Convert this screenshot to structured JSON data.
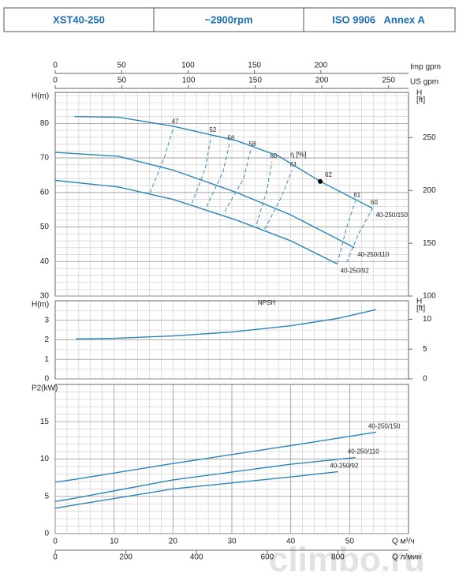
{
  "header": {
    "model": "XST40-250",
    "speed": "~2900rpm",
    "standard": "ISO 9906   Annex A"
  },
  "watermark": "climbo.ru",
  "chart_data": [
    {
      "type": "line",
      "ylabel": "H(m)",
      "y2label": [
        "H",
        "[ft]"
      ],
      "xlim": [
        0,
        60
      ],
      "ylim": [
        30,
        89
      ],
      "yticks": [
        30,
        40,
        50,
        60,
        70,
        80
      ],
      "y2lim": [
        100,
        293
      ],
      "y2ticks": [
        100,
        150,
        200,
        250
      ],
      "grid": true,
      "top_axes": [
        {
          "label": "Imp gpm",
          "xlim": [
            0,
            266
          ],
          "xticks": [
            0,
            50,
            100,
            150,
            200
          ]
        },
        {
          "label": "US gpm",
          "xlim": [
            0,
            265
          ],
          "xticks": [
            0,
            50,
            100,
            150,
            200,
            250
          ]
        }
      ],
      "series": [
        {
          "name": "40-250/150",
          "color": "#2a86b5",
          "x": [
            3.3,
            10.7,
            20,
            30.8,
            38,
            45,
            53.9
          ],
          "values": [
            82,
            81.8,
            79.2,
            75,
            70.5,
            63.2,
            55.4
          ]
        },
        {
          "name": "40-250/110",
          "color": "#2a86b5",
          "x": [
            0,
            10.7,
            20,
            30.8,
            40,
            50.8
          ],
          "values": [
            71.6,
            70.5,
            66.5,
            60,
            53.5,
            44
          ]
        },
        {
          "name": "40-250/92",
          "color": "#2a86b5",
          "x": [
            0,
            10.7,
            20,
            30.8,
            40,
            47.9
          ],
          "values": [
            63.5,
            61.6,
            58,
            52,
            46,
            39.3
          ]
        }
      ],
      "efficiency_label": "η [%]",
      "efficiency_lines": [
        {
          "label": "47",
          "x": [
            16.1,
            18.5,
            20.1
          ],
          "y": [
            59.9,
            70,
            78.9
          ]
        },
        {
          "label": "52",
          "x": [
            23.2,
            25.5,
            26.5
          ],
          "y": [
            56.8,
            67,
            76.4
          ]
        },
        {
          "label": "56",
          "x": [
            25.7,
            28.5,
            29.6
          ],
          "y": [
            55.9,
            66,
            74.1
          ]
        },
        {
          "label": "58",
          "x": [
            28.8,
            32,
            33.2
          ],
          "y": [
            54.5,
            64,
            72.3
          ]
        },
        {
          "label": "60",
          "x": [
            34.2,
            36,
            36.8
          ],
          "y": [
            50.8,
            61,
            68.9
          ]
        },
        {
          "label": "61",
          "x": [
            35.6,
            38.5,
            40.2
          ],
          "y": [
            49.4,
            59,
            66.4
          ]
        },
        {
          "label": "61",
          "x": [
            47.9,
            49.5,
            51
          ],
          "y": [
            39.3,
            50,
            57.6
          ]
        },
        {
          "label": "60",
          "x": [
            49.5,
            51.5,
            53.9
          ],
          "y": [
            39.7,
            48,
            55.4
          ]
        }
      ],
      "best_point": {
        "label": "62",
        "x": 45,
        "y": 63.2
      }
    },
    {
      "type": "line",
      "ylabel": "H(m)",
      "y2label": [
        "H",
        "[ft]"
      ],
      "xlim": [
        0,
        60
      ],
      "ylim": [
        0,
        4
      ],
      "yticks": [
        0,
        1,
        2,
        3
      ],
      "y2lim": [
        0,
        13.1
      ],
      "y2ticks": [
        0,
        5,
        10
      ],
      "grid": true,
      "series": [
        {
          "name": "NPSH",
          "color": "#2a86b5",
          "x": [
            3.5,
            10,
            20,
            30,
            40,
            48,
            54.5
          ],
          "values": [
            2.05,
            2.08,
            2.2,
            2.4,
            2.72,
            3.1,
            3.55
          ]
        }
      ]
    },
    {
      "type": "line",
      "ylabel": "P2(kW)",
      "xlabel": "Q м³/ч",
      "xlim": [
        0,
        60
      ],
      "xticks": [
        0,
        10,
        20,
        30,
        40,
        50
      ],
      "ylim": [
        0,
        20
      ],
      "yticks": [
        0,
        5,
        10,
        15
      ],
      "grid": true,
      "bottom_axes": [
        {
          "label": "Q л/мин",
          "xlim": [
            0,
            1000
          ],
          "xticks": [
            0,
            200,
            400,
            600,
            800
          ]
        }
      ],
      "series": [
        {
          "name": "40-250/150",
          "color": "#2a86b5",
          "x": [
            0,
            3.5,
            20,
            40,
            54.5
          ],
          "values": [
            6.9,
            7.3,
            9.4,
            11.8,
            13.6
          ]
        },
        {
          "name": "40-250/110",
          "color": "#2a86b5",
          "x": [
            0,
            3,
            20,
            40,
            51
          ],
          "values": [
            4.3,
            4.7,
            7.2,
            9.3,
            10.2
          ]
        },
        {
          "name": "40-250/92",
          "color": "#2a86b5",
          "x": [
            0,
            3,
            20,
            40,
            48
          ],
          "values": [
            3.4,
            3.8,
            6.0,
            7.6,
            8.3
          ]
        }
      ]
    }
  ]
}
